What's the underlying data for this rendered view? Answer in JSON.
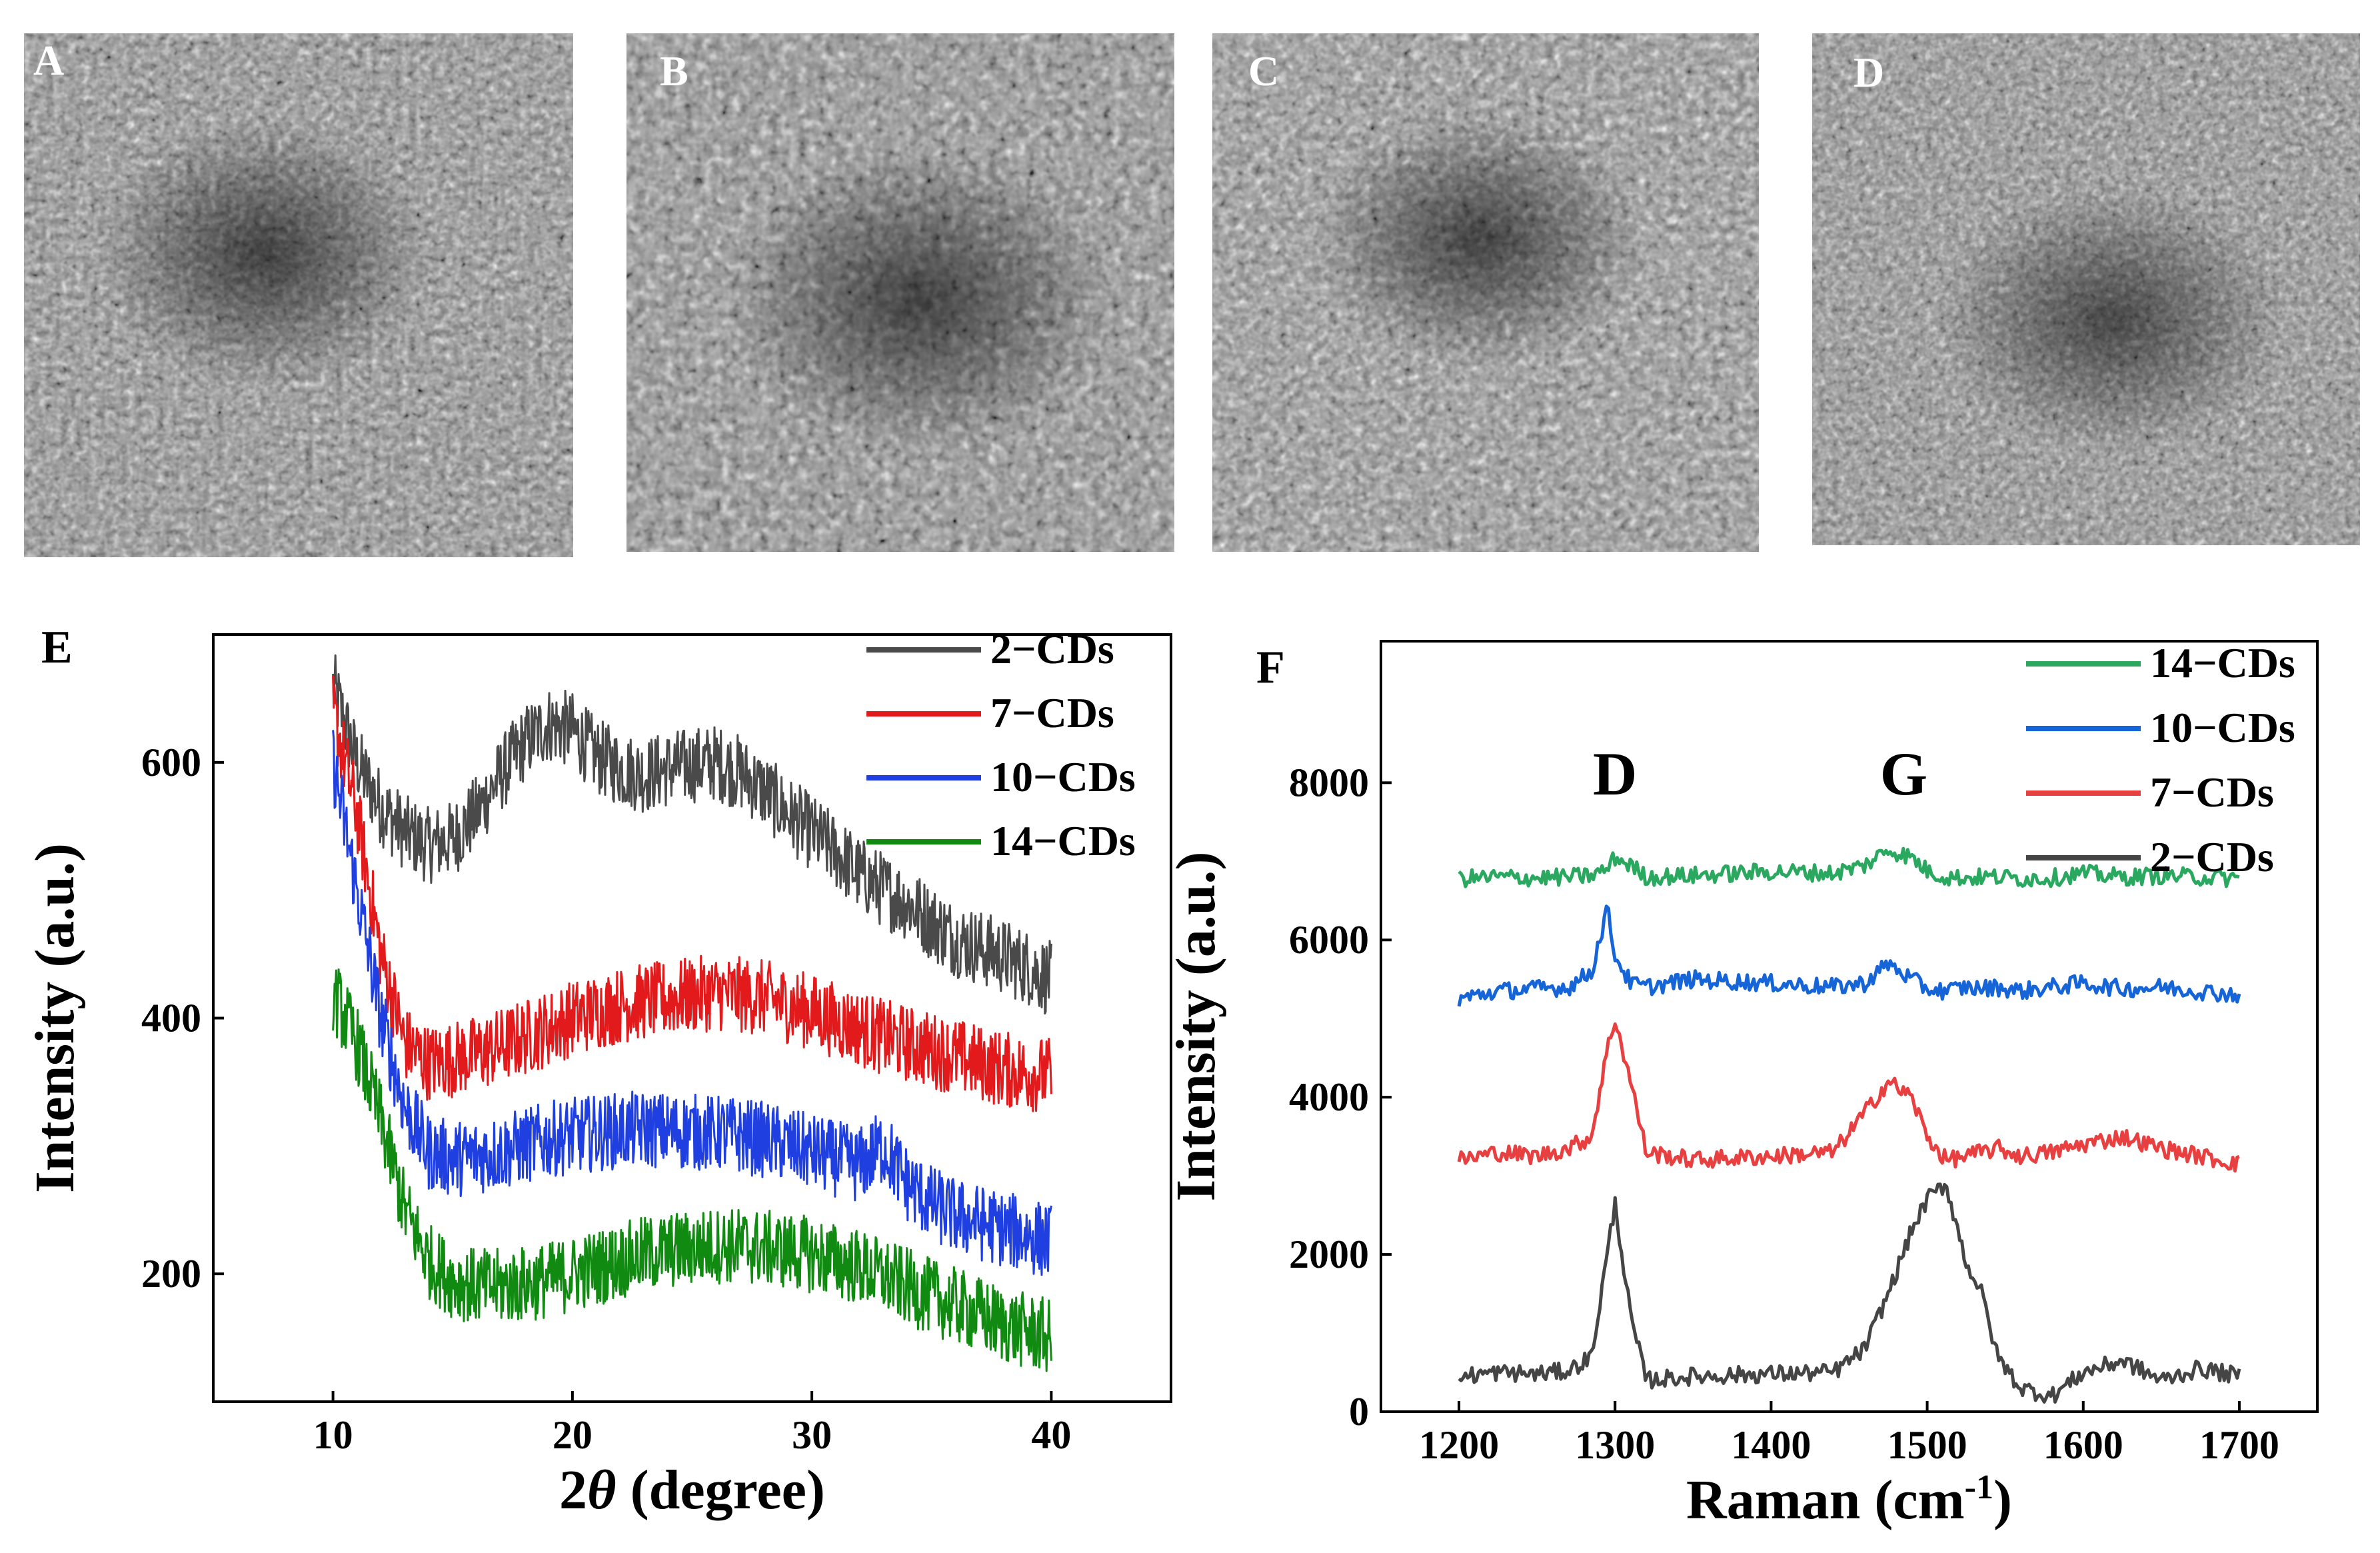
{
  "tem_panels": [
    {
      "label": "A"
    },
    {
      "label": "B"
    },
    {
      "label": "C"
    },
    {
      "label": "D"
    }
  ],
  "chart_data": [
    {
      "panel": "E",
      "type": "line",
      "title": "",
      "xlabel": "2θ (degree)",
      "xlabel_parts": [
        "2",
        "θ",
        " (degree)"
      ],
      "ylabel": "Intensity (a.u.)",
      "xlim": [
        5,
        45
      ],
      "ylim": [
        100,
        700
      ],
      "xticks": [
        10,
        20,
        30,
        40
      ],
      "yticks": [
        200,
        400,
        600
      ],
      "grid": false,
      "legend_position": "top-right",
      "x": [
        10,
        11,
        12,
        13,
        14,
        15,
        16,
        17,
        18,
        19,
        20,
        21,
        22,
        23,
        24,
        25,
        26,
        27,
        28,
        29,
        30,
        31,
        32,
        33,
        34,
        35,
        36,
        37,
        38,
        39,
        40
      ],
      "series": [
        {
          "name": "2−CDs",
          "color": "#4a4a4a",
          "values": [
            660,
            600,
            565,
            545,
            535,
            540,
            560,
            590,
            615,
            630,
            625,
            605,
            595,
            590,
            595,
            598,
            600,
            592,
            578,
            560,
            545,
            530,
            512,
            500,
            490,
            475,
            462,
            455,
            448,
            440,
            430
          ]
        },
        {
          "name": "7−CDs",
          "color": "#e31a1c",
          "values": [
            640,
            560,
            450,
            380,
            365,
            368,
            372,
            378,
            385,
            392,
            400,
            405,
            410,
            413,
            415,
            418,
            420,
            418,
            416,
            410,
            405,
            398,
            392,
            385,
            380,
            375,
            370,
            365,
            360,
            357,
            355
          ]
        },
        {
          "name": "10−CDs",
          "color": "#1f3fe0",
          "values": [
            600,
            500,
            400,
            330,
            295,
            290,
            292,
            295,
            300,
            305,
            308,
            310,
            312,
            313,
            312,
            311,
            310,
            308,
            305,
            300,
            295,
            290,
            285,
            300,
            270,
            255,
            245,
            240,
            235,
            230,
            225
          ]
        },
        {
          "name": "14−CDs",
          "color": "#118a11",
          "values": [
            420,
            380,
            320,
            250,
            210,
            195,
            190,
            190,
            192,
            195,
            200,
            205,
            210,
            215,
            218,
            220,
            222,
            222,
            220,
            218,
            215,
            210,
            205,
            198,
            190,
            182,
            175,
            168,
            160,
            155,
            150
          ]
        }
      ],
      "legend": [
        "2−CDs",
        "7−CDs",
        "10−CDs",
        "14−CDs"
      ]
    },
    {
      "panel": "F",
      "type": "line",
      "title": "",
      "xlabel": "Raman (cm-1)",
      "xlabel_parts": [
        "Raman (cm",
        "-1",
        ")"
      ],
      "ylabel": "Intensity (a.u.)",
      "xlim": [
        1150,
        1750
      ],
      "ylim": [
        0,
        9800
      ],
      "xticks": [
        1200,
        1300,
        1400,
        1500,
        1600,
        1700
      ],
      "yticks": [
        0,
        2000,
        4000,
        6000,
        8000
      ],
      "grid": false,
      "legend_position": "top-right",
      "annotations": [
        {
          "text": "D",
          "x": 1300
        },
        {
          "text": "G",
          "x": 1485
        }
      ],
      "x": [
        1200,
        1225,
        1250,
        1270,
        1285,
        1295,
        1300,
        1310,
        1320,
        1350,
        1400,
        1440,
        1460,
        1475,
        1490,
        1500,
        1512,
        1525,
        1535,
        1545,
        1560,
        1580,
        1600,
        1625,
        1650,
        1675,
        1700
      ],
      "series": [
        {
          "name": "14−CDs",
          "color": "#2aa860",
          "values": [
            6780,
            6800,
            6790,
            6800,
            6820,
            6900,
            7050,
            6950,
            6800,
            6820,
            6870,
            6850,
            6950,
            7150,
            7050,
            6880,
            6800,
            6790,
            6800,
            6800,
            6780,
            6790,
            6850,
            6800,
            6820,
            6800,
            6780
          ]
        },
        {
          "name": "10−CDs",
          "color": "#1565d8",
          "values": [
            5250,
            5350,
            5380,
            5400,
            5600,
            6400,
            5800,
            5450,
            5400,
            5500,
            5450,
            5400,
            5450,
            5700,
            5500,
            5380,
            5350,
            5400,
            5380,
            5400,
            5350,
            5400,
            5450,
            5380,
            5400,
            5350,
            5300
          ]
        },
        {
          "name": "7−CDs",
          "color": "#e84040",
          "values": [
            3200,
            3300,
            3250,
            3350,
            3500,
            4600,
            5000,
            4200,
            3300,
            3200,
            3250,
            3300,
            3800,
            4200,
            4000,
            3500,
            3200,
            3250,
            3300,
            3350,
            3250,
            3300,
            3400,
            3500,
            3350,
            3250,
            3150
          ]
        },
        {
          "name": "2−CDs",
          "color": "#454545",
          "values": [
            450,
            500,
            480,
            520,
            700,
            2000,
            2650,
            1200,
            400,
            450,
            480,
            500,
            800,
            1500,
            2300,
            2700,
            2900,
            1900,
            1500,
            700,
            300,
            200,
            500,
            650,
            400,
            550,
            450
          ]
        }
      ],
      "legend": [
        "14−CDs",
        "10−CDs",
        "7−CDs",
        "2−CDs"
      ]
    }
  ]
}
